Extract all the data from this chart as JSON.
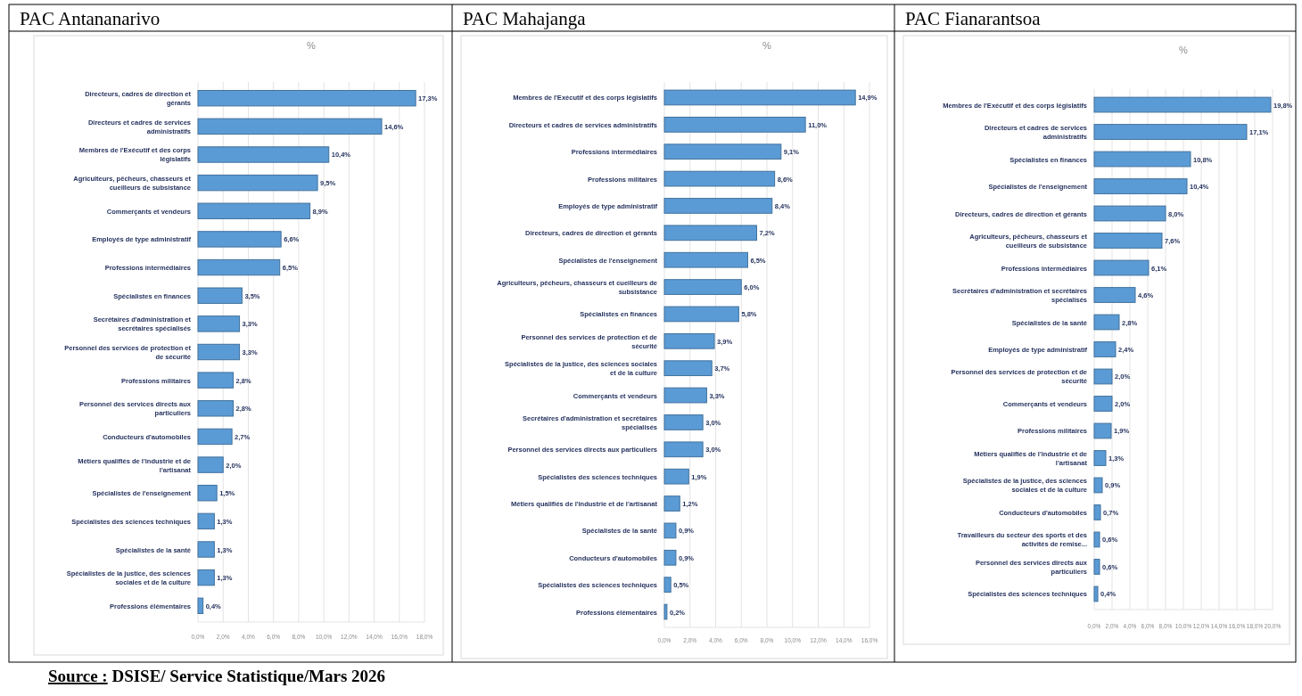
{
  "chart_data": [
    {
      "type": "bar",
      "orientation": "horizontal",
      "title": "PAC Antananarivo",
      "xlabel": "%",
      "grid": "x",
      "data_labels": true,
      "categories": [
        "Directeurs, cadres de direction et gérants",
        "Directeurs et cadres de services administratifs",
        "Membres de l'Exécutif et des corps législatifs",
        "Agriculteurs, pêcheurs, chasseurs et cueilleurs de subsistance",
        "Commerçants et vendeurs",
        "Employés de type administratif",
        "Professions intermédiaires",
        "Spécialistes en finances",
        "Secrétaires d'administration et secrétaires spécialisés",
        "Personnel des services de protection et de sécurité",
        "Professions militaires",
        "Personnel des services directs aux particuliers",
        "Conducteurs d'automobiles",
        "Métiers qualifiés de l'industrie et de l'artisanat",
        "Spécialistes de l'enseignement",
        "Spécialistes des sciences techniques",
        "Spécialistes de la santé",
        "Spécialistes de la justice, des sciences sociales et de la culture",
        "Professions élémentaires"
      ],
      "values": [
        17.3,
        14.6,
        10.4,
        9.5,
        8.9,
        6.6,
        6.5,
        3.5,
        3.3,
        3.3,
        2.8,
        2.8,
        2.7,
        2.0,
        1.5,
        1.3,
        1.3,
        1.3,
        0.4
      ],
      "value_labels": [
        "17,3%",
        "14,6%",
        "10,4%",
        "9,5%",
        "8,9%",
        "6,6%",
        "6,5%",
        "3,5%",
        "3,3%",
        "3,3%",
        "2,8%",
        "2,8%",
        "2,7%",
        "2,0%",
        "1,5%",
        "1,3%",
        "1,3%",
        "1,3%",
        "0,4%"
      ],
      "color": "#5b9bd5",
      "xlim": [
        0,
        18
      ],
      "xticks": [
        {
          "value": 0,
          "label": "0,0%"
        },
        {
          "value": 2,
          "label": "2,0%"
        },
        {
          "value": 4,
          "label": "4,0%"
        },
        {
          "value": 6,
          "label": "6,0%"
        },
        {
          "value": 8,
          "label": "8,0%"
        },
        {
          "value": 10,
          "label": "10,0%"
        },
        {
          "value": 12,
          "label": "12,0%"
        },
        {
          "value": 14,
          "label": "14,0%"
        },
        {
          "value": 16,
          "label": "16,0%"
        },
        {
          "value": 18,
          "label": "18,0%"
        }
      ],
      "annotations": [
        "Source : DSISE/ Service Statistique/Mars 2026"
      ]
    },
    {
      "type": "bar",
      "orientation": "horizontal",
      "title": "PAC Mahajanga",
      "xlabel": "%",
      "grid": "x",
      "data_labels": true,
      "categories": [
        "Membres de l'Exécutif et des corps législatifs",
        "Directeurs et cadres de services administratifs",
        "Professions intermédiaires",
        "Professions militaires",
        "Employés de type administratif",
        "Directeurs, cadres de direction et gérants",
        "Spécialistes de l'enseignement",
        "Agriculteurs, pêcheurs, chasseurs et cueilleurs de subsistance",
        "Spécialistes en finances",
        "Personnel des services de protection et de sécurité",
        "Spécialistes de la justice, des sciences sociales et de la culture",
        "Commerçants et vendeurs",
        "Secrétaires d'administration et secrétaires spécialisés",
        "Personnel des services directs aux particuliers",
        "Spécialistes des sciences techniques",
        "Métiers qualifiés de l'industrie et de l'artisanat",
        "Spécialistes de la santé",
        "Conducteurs d'automobiles",
        "Spécialistes des sciences techniques",
        "Professions élémentaires"
      ],
      "values": [
        14.9,
        11.0,
        9.1,
        8.6,
        8.4,
        7.2,
        6.5,
        6.0,
        5.8,
        3.9,
        3.7,
        3.3,
        3.0,
        3.0,
        1.9,
        1.2,
        0.9,
        0.9,
        0.5,
        0.2
      ],
      "value_labels": [
        "14,9%",
        "11,0%",
        "9,1%",
        "8,6%",
        "8,4%",
        "7,2%",
        "6,5%",
        "6,0%",
        "5,8%",
        "3,9%",
        "3,7%",
        "3,3%",
        "3,0%",
        "3,0%",
        "1,9%",
        "1,2%",
        "0,9%",
        "0,9%",
        "0,5%",
        "0,2%"
      ],
      "color": "#5b9bd5",
      "xlim": [
        0,
        16
      ],
      "xticks": [
        {
          "value": 0,
          "label": "0,0%"
        },
        {
          "value": 2,
          "label": "2,0%"
        },
        {
          "value": 4,
          "label": "4,0%"
        },
        {
          "value": 6,
          "label": "6,0%"
        },
        {
          "value": 8,
          "label": "8,0%"
        },
        {
          "value": 10,
          "label": "10,0%"
        },
        {
          "value": 12,
          "label": "12,0%"
        },
        {
          "value": 14,
          "label": "14,0%"
        },
        {
          "value": 16,
          "label": "16,0%"
        }
      ]
    },
    {
      "type": "bar",
      "orientation": "horizontal",
      "title": "PAC Fianarantsoa",
      "xlabel": "%",
      "grid": "x",
      "data_labels": true,
      "categories": [
        "Membres de l'Exécutif et des corps législatifs",
        "Directeurs et cadres de services administratifs",
        "Spécialistes en finances",
        "Spécialistes de l'enseignement",
        "Directeurs, cadres de direction et gérants",
        "Agriculteurs, pêcheurs, chasseurs et cueilleurs de subsistance",
        "Professions intermédiaires",
        "Secrétaires d'administration et secrétaires spécialisés",
        "Spécialistes de la santé",
        "Employés de type administratif",
        "Personnel des services de protection et de sécurité",
        "Commerçants et vendeurs",
        "Professions militaires",
        "Métiers qualifiés de l'industrie et de l'artisanat",
        "Spécialistes de la justice, des sciences sociales et de la culture",
        "Conducteurs d'automobiles",
        "Travailleurs du secteur des sports et des activités de remise...",
        "Personnel des services directs aux particuliers",
        "Spécialistes des sciences techniques"
      ],
      "values": [
        19.8,
        17.1,
        10.8,
        10.4,
        8.0,
        7.6,
        6.1,
        4.6,
        2.8,
        2.4,
        2.0,
        2.0,
        1.9,
        1.3,
        0.9,
        0.7,
        0.6,
        0.6,
        0.4
      ],
      "value_labels": [
        "19,8%",
        "17,1%",
        "10,8%",
        "10,4%",
        "8,0%",
        "7,6%",
        "6,1%",
        "4,6%",
        "2,8%",
        "2,4%",
        "2,0%",
        "2,0%",
        "1,9%",
        "1,3%",
        "0,9%",
        "0,7%",
        "0,6%",
        "0,6%",
        "0,4%"
      ],
      "color": "#5b9bd5",
      "xlim": [
        0,
        20
      ],
      "xticks": [
        {
          "value": 0,
          "label": "0,0%"
        },
        {
          "value": 2,
          "label": "2,0%"
        },
        {
          "value": 4,
          "label": "4,0%"
        },
        {
          "value": 6,
          "label": "6,0%"
        },
        {
          "value": 8,
          "label": "8,0%"
        },
        {
          "value": 10,
          "label": "10,0%"
        },
        {
          "value": 12,
          "label": "12,0%"
        },
        {
          "value": 14,
          "label": "14,0%"
        },
        {
          "value": 16,
          "label": "16,0%"
        },
        {
          "value": 18,
          "label": "18,0%"
        },
        {
          "value": 20,
          "label": "20,0%"
        }
      ]
    }
  ]
}
